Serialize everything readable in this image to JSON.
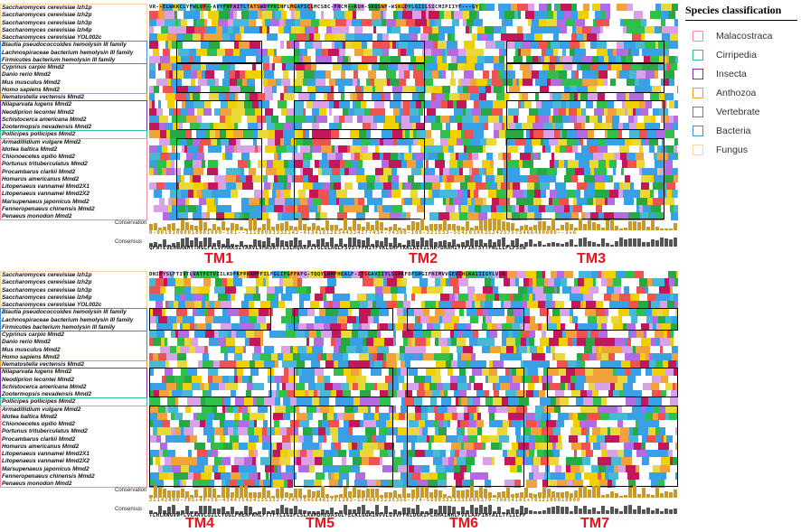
{
  "species": [
    {
      "name": "Saccharomyces cerevisiae Izh1p",
      "group": "Fungus"
    },
    {
      "name": "Saccharomyces cerevisiae Izh2p",
      "group": "Fungus"
    },
    {
      "name": "Saccharomyces cerevisiae Izh3p",
      "group": "Fungus"
    },
    {
      "name": "Saccharomyces cerevisiae Izh4p",
      "group": "Fungus"
    },
    {
      "name": "Saccharomyces cerevisiae YOL002c",
      "group": "Fungus"
    },
    {
      "name": "Blautia pseudococcoides hemolysin III family",
      "group": "Bacteria"
    },
    {
      "name": "Lachnospiraceae bacterium hemolysin III family",
      "group": "Bacteria"
    },
    {
      "name": "Firmicutes bacterium hemolysin III family",
      "group": "Bacteria"
    },
    {
      "name": "Cyprinus carpio Mmd2",
      "group": "Vertebrate"
    },
    {
      "name": "Danio rerio Mmd2",
      "group": "Vertebrate"
    },
    {
      "name": "Mus musculus Mmd2",
      "group": "Vertebrate"
    },
    {
      "name": "Homo sapiens Mmd2",
      "group": "Vertebrate"
    },
    {
      "name": "Nematostella vectensis Mmd2",
      "group": "Anthozoa"
    },
    {
      "name": "Nilaparvata lugens Mmd2",
      "group": "Insecta"
    },
    {
      "name": "Neodiprion lecontei Mmd2",
      "group": "Insecta"
    },
    {
      "name": "Schistocerca americana Mmd2",
      "group": "Insecta"
    },
    {
      "name": "Zootermopsis nevadensis Mmd2",
      "group": "Insecta"
    },
    {
      "name": "Pollicipes pollicipes Mmd2",
      "group": "Cirripedia"
    },
    {
      "name": "Armadillidium vulgare Mmd2",
      "group": "Malacostraca"
    },
    {
      "name": "Idotea baltica Mmd2",
      "group": "Malacostraca"
    },
    {
      "name": "Chionoecetes opilio Mmd2",
      "group": "Malacostraca"
    },
    {
      "name": "Portunus trituberculatus Mmd2",
      "group": "Malacostraca"
    },
    {
      "name": "Procambarus clarkii Mmd2",
      "group": "Malacostraca"
    },
    {
      "name": "Homarus americanus Mmd2",
      "group": "Malacostraca"
    },
    {
      "name": "Litopenaeus vannamei Mmd2X1",
      "group": "Malacostraca"
    },
    {
      "name": "Litopenaeus vannamei Mmd2X2",
      "group": "Malacostraca"
    },
    {
      "name": "Marsupenaeus japonicus Mmd2",
      "group": "Malacostraca"
    },
    {
      "name": "Fenneropenaeus chinensis Mmd2",
      "group": "Malacostraca"
    },
    {
      "name": "Penaeus monodon Mmd2",
      "group": "Malacostraca"
    }
  ],
  "block1": {
    "first_row_text": "VR--ELWKKCLYFWLVP--AVYFVFAITLTATSWDYYVIHFLMGAFSCLMCSBC-FHCM--KQH-SKQSNF-WSKLDYLGIILSICMIPIIYF---GY",
    "conservation_label": "Conservation",
    "consensus_label": "Consensus",
    "conservation_digits": "0-00101000010001000-101--11100003332142-413416126344324277434-74300-100-221533-554203483524257575466480000--3+6",
    "consensus_seq": "QPNTEVEHWANMYTHGLFVLVPMRKSIYAAVLVMASRTTLSLHQAAFIYGLGLAGLFSVSTFPHIYFVKLGHPYKKLKEVILHR+DRAMIYYFIATSYTPWLLLPLPSSW",
    "tm_labels": [
      "TM1",
      "TM2",
      "TM3"
    ]
  },
  "block2": {
    "first_row_text": "DNIFYSLFTIVTLVATFCTVCILKDFKFPRAMFFILFGLIFGFFKFG-TQQYLNMFHEALF-ITSGAVIIYLSSPKFDFSHGIFHIMVVGEVCHLKAIIIGYLVIH",
    "conservation_label": "Conservation",
    "consensus_label": "Consensus",
    "conservation_digits": "21142000-705+40+56-4344754241353527+74575456461701303-1346803235356-774-56003311335600379-78854165+7012100010000",
    "consensus_seq": "TLHLRWGVW+LVLAAVLGILCYGGLFHERFKMLFTTFYLIGIPLSLAVMDMEDASGL+ELKLGGAIWVVLGVVFFKLDGRIPLAHAIWHLFVVLAAFIHYAILTYLILPP",
    "tm_labels": [
      "TM4",
      "TM5",
      "TM6",
      "TM7"
    ]
  },
  "legend": {
    "title": "Species classification",
    "items": [
      {
        "label": "Malacostraca",
        "color": "#f48fa3"
      },
      {
        "label": "Cirripedia",
        "color": "#2fbf9a"
      },
      {
        "label": "Insecta",
        "color": "#7b2ea8"
      },
      {
        "label": "Anthozoa",
        "color": "#e2a21c"
      },
      {
        "label": "Vertebrate",
        "color": "#7a7a7a"
      },
      {
        "label": "Bacteria",
        "color": "#3e8fd6"
      },
      {
        "label": "Fungus",
        "color": "#f2d7a3"
      }
    ]
  }
}
